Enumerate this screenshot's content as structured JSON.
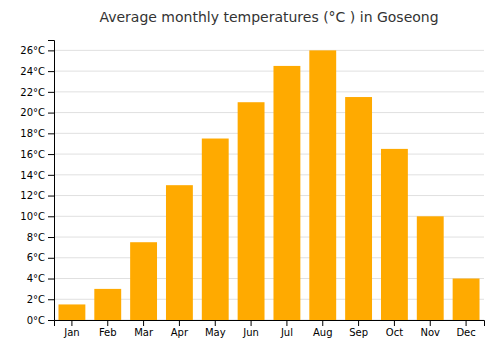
{
  "chart_data": {
    "type": "bar",
    "title": "Average monthly temperatures (°C ) in Goseong",
    "categories": [
      "Jan",
      "Feb",
      "Mar",
      "Apr",
      "May",
      "Jun",
      "Jul",
      "Aug",
      "Sep",
      "Oct",
      "Nov",
      "Dec"
    ],
    "values": [
      1.5,
      3.0,
      7.5,
      13.0,
      17.5,
      21.0,
      24.5,
      26.0,
      21.5,
      16.5,
      10.0,
      4.0
    ],
    "color": "#FFAA00",
    "ylim": [
      0,
      27
    ],
    "yticks": [
      {
        "value": 0,
        "label": "0°C"
      },
      {
        "value": 2,
        "label": "2°C"
      },
      {
        "value": 4,
        "label": "4°C"
      },
      {
        "value": 6,
        "label": "6°C"
      },
      {
        "value": 8,
        "label": "8°C"
      },
      {
        "value": 10,
        "label": "10°C"
      },
      {
        "value": 12,
        "label": "12°C"
      },
      {
        "value": 14,
        "label": "14°C"
      },
      {
        "value": 16,
        "label": "16°C"
      },
      {
        "value": 18,
        "label": "18°C"
      },
      {
        "value": 20,
        "label": "20°C"
      },
      {
        "value": 22,
        "label": "22°C"
      },
      {
        "value": 24,
        "label": "24°C"
      },
      {
        "value": 26,
        "label": "26°C"
      }
    ],
    "grid": true
  }
}
